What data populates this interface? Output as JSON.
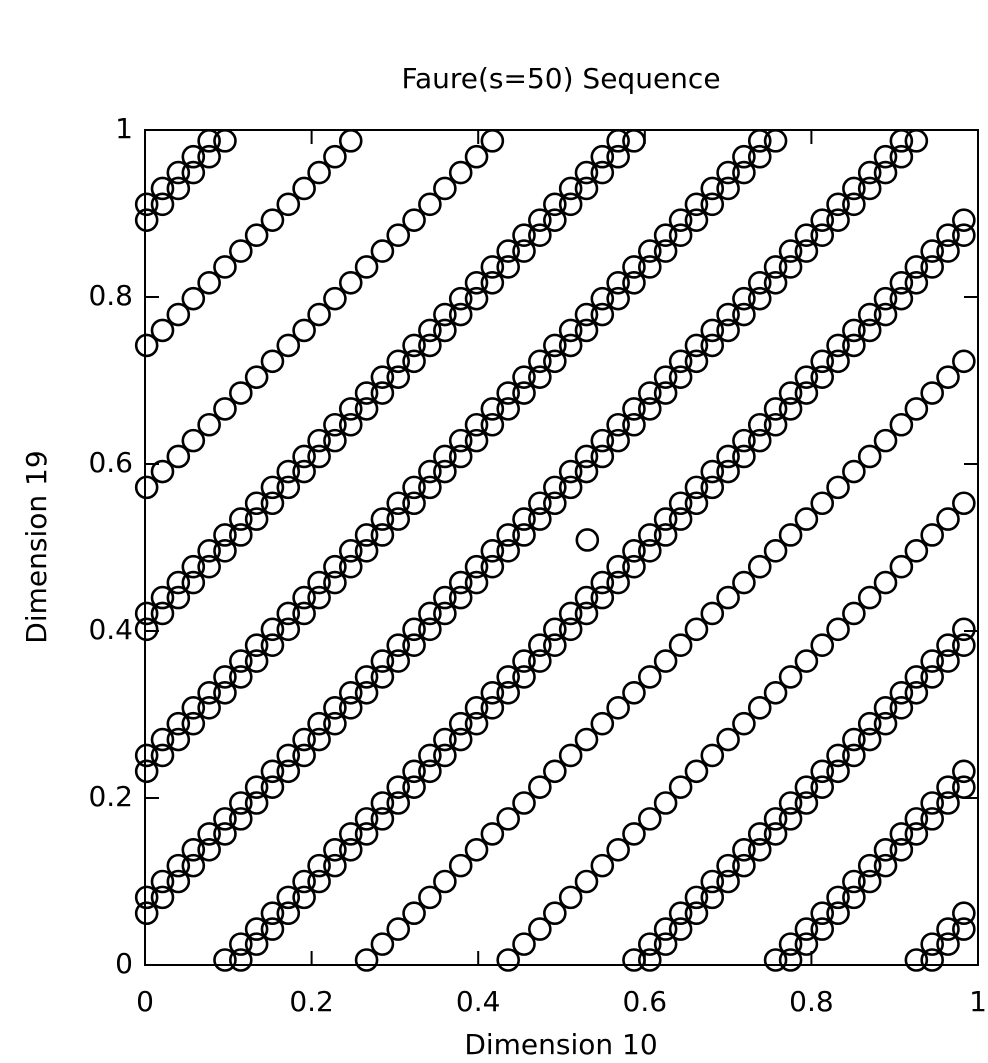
{
  "chart_data": {
    "type": "scatter",
    "title": "Faure(s=50) Sequence",
    "x_label": "Dimension 10",
    "y_label": "Dimension 19",
    "color": "#000000",
    "xlim": [
      0,
      1
    ],
    "ylim": [
      0,
      1
    ],
    "xticks": [
      0,
      0.2,
      0.4,
      0.6,
      0.8,
      1
    ],
    "yticks": [
      0,
      0.2,
      0.4,
      0.6,
      0.8,
      1
    ],
    "x": [
      0.002,
      0.021,
      0.04,
      0.058,
      0.077,
      0.096,
      0.115,
      0.134,
      0.153,
      0.172,
      0.191,
      0.209,
      0.228,
      0.247,
      0.266,
      0.285,
      0.304,
      0.323,
      0.342,
      0.36,
      0.379,
      0.398,
      0.417,
      0.436,
      0.455,
      0.474,
      0.492,
      0.511,
      0.53,
      0.549,
      0.568,
      0.587,
      0.606,
      0.625,
      0.643,
      0.662,
      0.681,
      0.7,
      0.719,
      0.738,
      0.757,
      0.775,
      0.794,
      0.813,
      0.832,
      0.851,
      0.87,
      0.889,
      0.908,
      0.926,
      0.945,
      0.964,
      0.983
    ],
    "series": [
      {
        "values": [
          0.062,
          0.081,
          0.1,
          0.119,
          0.138,
          0.157,
          0.175,
          0.194,
          0.213,
          0.232,
          0.251,
          0.27,
          0.289,
          0.308,
          0.326,
          0.345,
          0.364,
          0.383,
          0.402,
          0.421,
          0.44,
          0.458,
          0.477,
          0.496,
          0.515,
          0.534,
          0.553,
          0.572,
          0.591,
          0.609,
          0.628,
          0.647,
          0.666,
          0.685,
          0.704,
          0.723,
          0.742,
          0.76,
          0.779,
          0.798,
          0.817,
          0.836,
          0.855,
          0.874,
          0.892,
          0.911,
          0.93,
          0.949,
          0.968,
          0.987,
          0.006,
          0.025,
          0.043
        ]
      },
      {
        "values": [
          0.081,
          0.1,
          0.119,
          0.138,
          0.157,
          0.175,
          0.194,
          0.213,
          0.232,
          0.251,
          0.27,
          0.289,
          0.308,
          0.326,
          0.345,
          0.364,
          0.383,
          0.402,
          0.421,
          0.44,
          0.458,
          0.477,
          0.496,
          0.515,
          0.534,
          0.553,
          0.572,
          0.591,
          0.609,
          0.628,
          0.647,
          0.666,
          0.685,
          0.704,
          0.723,
          0.742,
          0.76,
          0.779,
          0.798,
          0.817,
          0.836,
          0.855,
          0.874,
          0.892,
          0.911,
          0.93,
          0.949,
          0.968,
          0.987,
          0.006,
          0.025,
          0.043,
          0.062
        ]
      },
      {
        "values": [
          0.232,
          0.251,
          0.27,
          0.289,
          0.308,
          0.326,
          0.345,
          0.364,
          0.383,
          0.402,
          0.421,
          0.44,
          0.458,
          0.477,
          0.496,
          0.515,
          0.534,
          0.553,
          0.572,
          0.591,
          0.609,
          0.628,
          0.647,
          0.666,
          0.685,
          0.704,
          0.723,
          0.742,
          0.76,
          0.779,
          0.798,
          0.817,
          0.836,
          0.855,
          0.874,
          0.892,
          0.911,
          0.93,
          0.949,
          0.968,
          0.987,
          0.006,
          0.025,
          0.043,
          0.062,
          0.081,
          0.1,
          0.119,
          0.138,
          0.157,
          0.175,
          0.194,
          0.213
        ]
      },
      {
        "values": [
          0.251,
          0.27,
          0.289,
          0.308,
          0.326,
          0.345,
          0.364,
          0.383,
          0.402,
          0.421,
          0.44,
          0.458,
          0.477,
          0.496,
          0.515,
          0.534,
          0.553,
          0.572,
          0.591,
          0.609,
          0.628,
          0.647,
          0.666,
          0.685,
          0.704,
          0.723,
          0.742,
          0.76,
          0.779,
          0.798,
          0.817,
          0.836,
          0.855,
          0.874,
          0.892,
          0.911,
          0.93,
          0.949,
          0.968,
          0.987,
          0.006,
          0.025,
          0.043,
          0.062,
          0.081,
          0.1,
          0.119,
          0.138,
          0.157,
          0.175,
          0.194,
          0.213,
          0.232
        ]
      },
      {
        "values": [
          0.402,
          0.421,
          0.44,
          0.458,
          0.477,
          0.496,
          0.515,
          0.534,
          0.553,
          0.572,
          0.591,
          0.609,
          0.628,
          0.647,
          0.666,
          0.685,
          0.704,
          0.723,
          0.742,
          0.76,
          0.779,
          0.798,
          0.817,
          0.836,
          0.855,
          0.874,
          0.892,
          0.911,
          0.93,
          0.949,
          0.968,
          0.987,
          0.006,
          0.025,
          0.043,
          0.062,
          0.081,
          0.1,
          0.119,
          0.138,
          0.157,
          0.175,
          0.194,
          0.213,
          0.232,
          0.251,
          0.27,
          0.289,
          0.308,
          0.326,
          0.345,
          0.364,
          0.383
        ]
      },
      {
        "values": [
          0.421,
          0.44,
          0.458,
          0.477,
          0.496,
          0.515,
          0.534,
          0.553,
          0.572,
          0.591,
          0.609,
          0.628,
          0.647,
          0.666,
          0.685,
          0.704,
          0.723,
          0.742,
          0.76,
          0.779,
          0.798,
          0.817,
          0.836,
          0.855,
          0.874,
          0.892,
          0.911,
          0.93,
          0.949,
          0.968,
          0.987,
          0.006,
          0.025,
          0.043,
          0.062,
          0.081,
          0.1,
          0.119,
          0.138,
          0.157,
          0.175,
          0.194,
          0.213,
          0.232,
          0.251,
          0.27,
          0.289,
          0.308,
          0.326,
          0.345,
          0.364,
          0.383,
          0.402
        ]
      },
      {
        "values": [
          0.572,
          0.591,
          0.609,
          0.628,
          0.647,
          0.666,
          0.685,
          0.704,
          0.723,
          0.742,
          0.76,
          0.779,
          0.798,
          0.817,
          0.836,
          0.855,
          0.874,
          0.892,
          0.911,
          0.93,
          0.949,
          0.968,
          0.987,
          0.006,
          0.025,
          0.043,
          0.062,
          0.081,
          0.1,
          0.119,
          0.138,
          0.157,
          0.175,
          0.194,
          0.213,
          0.232,
          0.251,
          0.27,
          0.289,
          0.308,
          0.326,
          0.345,
          0.364,
          0.383,
          0.402,
          0.421,
          0.44,
          0.458,
          0.477,
          0.496,
          0.515,
          0.534,
          0.553
        ]
      },
      {
        "values": [
          0.742,
          0.76,
          0.779,
          0.798,
          0.817,
          0.836,
          0.855,
          0.874,
          0.892,
          0.911,
          0.93,
          0.949,
          0.968,
          0.987,
          0.006,
          0.025,
          0.043,
          0.062,
          0.081,
          0.1,
          0.119,
          0.138,
          0.157,
          0.175,
          0.194,
          0.213,
          0.232,
          0.251,
          0.27,
          0.289,
          0.308,
          0.326,
          0.345,
          0.364,
          0.383,
          0.402,
          0.421,
          0.44,
          0.458,
          0.477,
          0.496,
          0.515,
          0.534,
          0.553,
          0.572,
          0.591,
          0.609,
          0.628,
          0.647,
          0.666,
          0.685,
          0.704,
          0.723
        ]
      },
      {
        "values": [
          0.892,
          0.911,
          0.93,
          0.949,
          0.968,
          0.987,
          0.006,
          0.025,
          0.043,
          0.062,
          0.081,
          0.1,
          0.119,
          0.138,
          0.157,
          0.175,
          0.194,
          0.213,
          0.232,
          0.251,
          0.27,
          0.289,
          0.308,
          0.326,
          0.345,
          0.364,
          0.383,
          0.402,
          0.421,
          0.44,
          0.458,
          0.477,
          0.496,
          0.515,
          0.534,
          0.553,
          0.572,
          0.591,
          0.609,
          0.628,
          0.647,
          0.666,
          0.685,
          0.704,
          0.723,
          0.742,
          0.76,
          0.779,
          0.798,
          0.817,
          0.836,
          0.855,
          0.874
        ]
      },
      {
        "values": [
          0.911,
          0.93,
          0.949,
          0.968,
          0.987,
          0.006,
          0.025,
          0.043,
          0.062,
          0.081,
          0.1,
          0.119,
          0.138,
          0.157,
          0.175,
          0.194,
          0.213,
          0.232,
          0.251,
          0.27,
          0.289,
          0.308,
          0.326,
          0.345,
          0.364,
          0.383,
          0.402,
          0.421,
          0.44,
          0.458,
          0.477,
          0.496,
          0.515,
          0.534,
          0.553,
          0.572,
          0.591,
          0.609,
          0.628,
          0.647,
          0.666,
          0.685,
          0.704,
          0.723,
          0.742,
          0.76,
          0.779,
          0.798,
          0.817,
          0.836,
          0.855,
          0.874,
          0.892
        ]
      },
      {
        "x": [
          0.531
        ],
        "values": [
          0.509
        ]
      }
    ]
  }
}
